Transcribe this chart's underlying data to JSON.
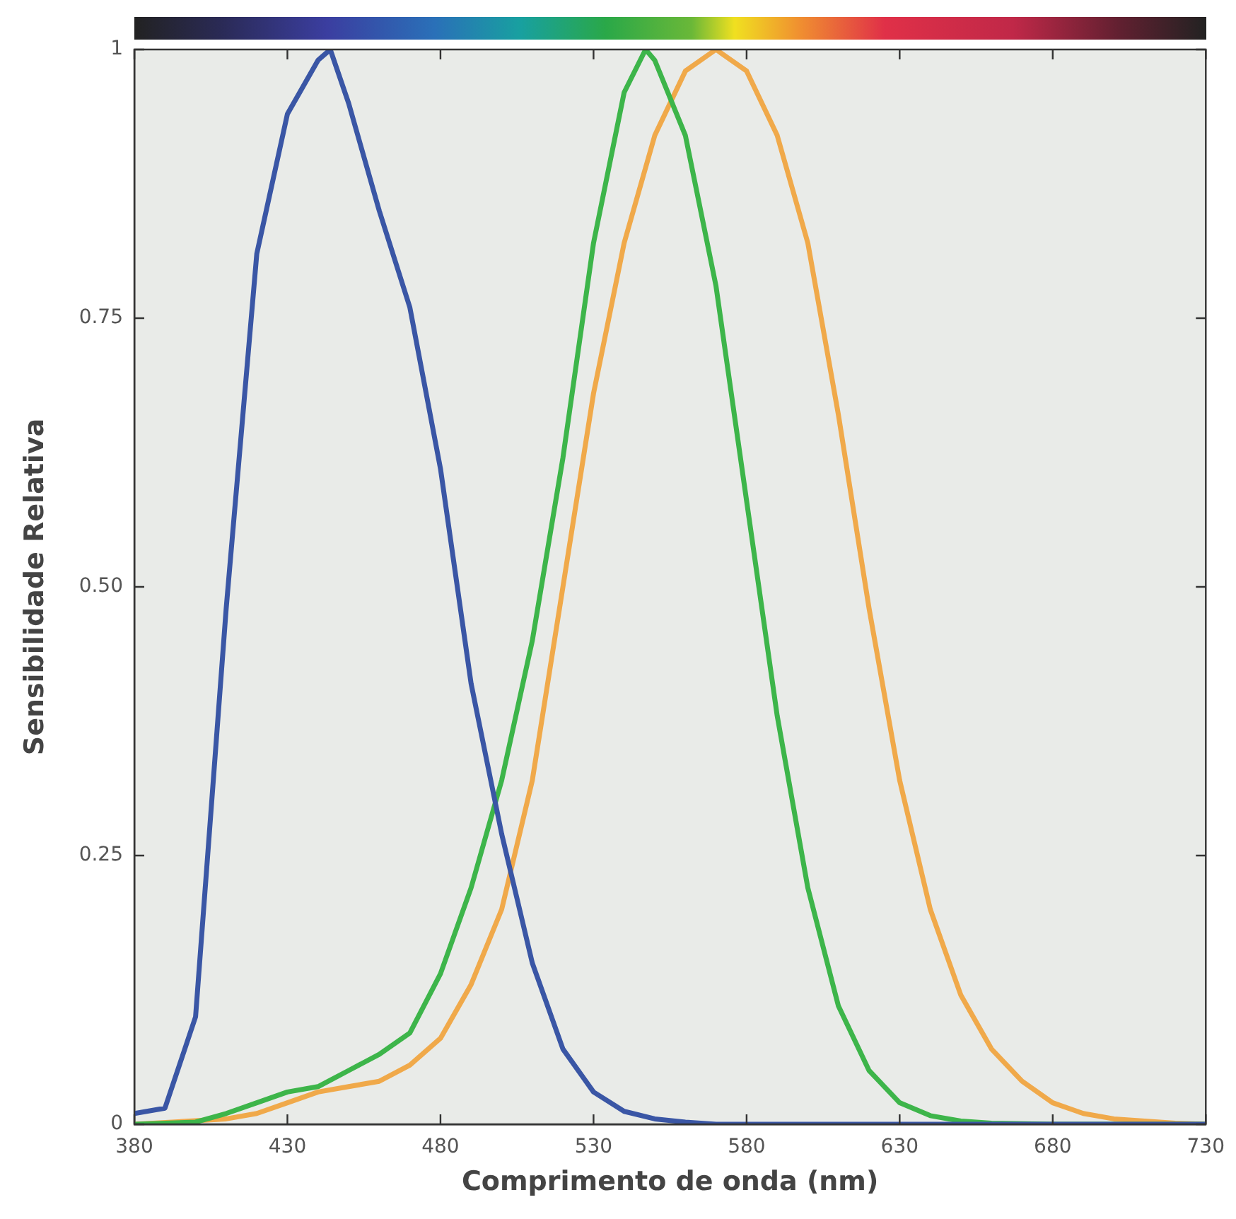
{
  "chart_data": {
    "type": "line",
    "xlabel": "Comprimento de onda (nm)",
    "ylabel": "Sensibilidade Relativa",
    "xlim": [
      380,
      730
    ],
    "xticks": [
      380,
      430,
      480,
      530,
      580,
      630,
      680,
      730
    ],
    "ylim": [
      0,
      1
    ],
    "yticks": [
      0,
      0.25,
      {
        "value": 0.5,
        "label": "0.50"
      },
      0.75,
      1
    ],
    "grid": false,
    "legend": false,
    "marker": "none",
    "line_style": "solid",
    "series": [
      {
        "color": "#3a56a5",
        "x": [
          380,
          390,
          400,
          410,
          420,
          430,
          440,
          444,
          450,
          460,
          470,
          480,
          490,
          500,
          510,
          520,
          530,
          540,
          550,
          560,
          570,
          600,
          650,
          700,
          730
        ],
        "values": [
          0.01,
          0.015,
          0.1,
          0.48,
          0.81,
          0.94,
          0.99,
          1,
          0.95,
          0.85,
          0.76,
          0.61,
          0.41,
          0.27,
          0.15,
          0.07,
          0.03,
          0.012,
          0.005,
          0.002,
          0,
          0,
          0,
          0,
          0
        ]
      },
      {
        "color": "#3db54a",
        "x": [
          380,
          400,
          410,
          420,
          430,
          440,
          450,
          460,
          470,
          480,
          490,
          500,
          510,
          520,
          530,
          540,
          547,
          550,
          560,
          570,
          580,
          590,
          600,
          610,
          620,
          630,
          640,
          650,
          660,
          680,
          730
        ],
        "values": [
          0,
          0.002,
          0.01,
          0.02,
          0.03,
          0.035,
          0.05,
          0.065,
          0.085,
          0.14,
          0.22,
          0.32,
          0.45,
          0.62,
          0.82,
          0.96,
          1,
          0.99,
          0.92,
          0.78,
          0.58,
          0.38,
          0.22,
          0.11,
          0.05,
          0.02,
          0.008,
          0.003,
          0.001,
          0,
          0
        ]
      },
      {
        "color": "#f0a94a",
        "x": [
          380,
          410,
          420,
          430,
          440,
          450,
          460,
          470,
          480,
          490,
          500,
          510,
          520,
          530,
          540,
          550,
          560,
          570,
          580,
          590,
          600,
          610,
          620,
          630,
          640,
          650,
          660,
          670,
          680,
          690,
          700,
          720,
          730
        ],
        "values": [
          0,
          0.005,
          0.01,
          0.02,
          0.03,
          0.035,
          0.04,
          0.055,
          0.08,
          0.13,
          0.2,
          0.32,
          0.5,
          0.68,
          0.82,
          0.92,
          0.98,
          1,
          0.98,
          0.92,
          0.82,
          0.66,
          0.48,
          0.32,
          0.2,
          0.12,
          0.07,
          0.04,
          0.02,
          0.01,
          0.005,
          0.001,
          0
        ]
      }
    ]
  }
}
